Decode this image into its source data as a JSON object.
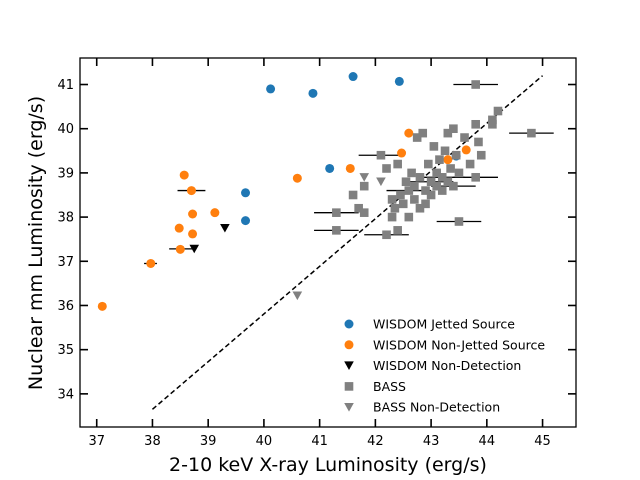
{
  "chart_data": {
    "type": "scatter",
    "xlabel": "2-10 keV X-ray Luminosity (erg/s)",
    "ylabel": "Nuclear mm Luminosity (erg/s)",
    "xlim": [
      36.7,
      45.6
    ],
    "ylim": [
      33.25,
      41.6
    ],
    "xticks": [
      37,
      38,
      39,
      40,
      41,
      42,
      43,
      44,
      45
    ],
    "yticks": [
      34,
      35,
      36,
      37,
      38,
      39,
      40,
      41
    ],
    "grid": false,
    "legend_position": "lower-right",
    "reference_line": {
      "style": "dashed",
      "color": "#000000",
      "x": [
        38.0,
        45.0
      ],
      "y": [
        33.65,
        41.2
      ]
    },
    "series": [
      {
        "name": "WISDOM Jetted Source",
        "marker": "circle",
        "color": "#1f77b4",
        "points": [
          {
            "x": 39.67,
            "y": 38.55
          },
          {
            "x": 39.67,
            "y": 37.92
          },
          {
            "x": 40.12,
            "y": 40.9
          },
          {
            "x": 40.88,
            "y": 40.8
          },
          {
            "x": 41.18,
            "y": 39.1
          },
          {
            "x": 41.6,
            "y": 41.18
          },
          {
            "x": 42.43,
            "y": 41.07
          },
          {
            "x": 43.45,
            "y": 39.38
          }
        ]
      },
      {
        "name": "WISDOM Non-Jetted Source",
        "marker": "circle",
        "color": "#ff7f0e",
        "points": [
          {
            "x": 37.1,
            "y": 35.98
          },
          {
            "x": 37.97,
            "y": 36.95
          },
          {
            "x": 38.48,
            "y": 37.75
          },
          {
            "x": 38.5,
            "y": 37.27
          },
          {
            "x": 38.57,
            "y": 38.95
          },
          {
            "x": 38.7,
            "y": 38.6
          },
          {
            "x": 38.72,
            "y": 38.07
          },
          {
            "x": 38.72,
            "y": 37.62
          },
          {
            "x": 39.12,
            "y": 38.1
          },
          {
            "x": 40.6,
            "y": 38.88
          },
          {
            "x": 41.55,
            "y": 39.1
          },
          {
            "x": 42.47,
            "y": 39.45
          },
          {
            "x": 42.6,
            "y": 39.9
          },
          {
            "x": 43.3,
            "y": 39.3
          },
          {
            "x": 43.63,
            "y": 39.52
          }
        ],
        "xerr": [
          {
            "x": 38.7,
            "y": 38.6,
            "lo": 38.45,
            "hi": 38.95
          },
          {
            "x": 37.97,
            "y": 36.95,
            "lo": 37.85,
            "hi": 38.08
          }
        ]
      },
      {
        "name": "WISDOM Non-Detection",
        "marker": "triangle-down",
        "color": "#000000",
        "points": [
          {
            "x": 38.75,
            "y": 37.28
          },
          {
            "x": 39.3,
            "y": 37.75
          }
        ],
        "xerr": [
          {
            "x": 38.75,
            "y": 37.28,
            "lo": 38.3,
            "hi": 38.75
          }
        ]
      },
      {
        "name": "BASS",
        "marker": "square",
        "color": "#808080",
        "points": [
          {
            "x": 41.3,
            "y": 37.7
          },
          {
            "x": 41.3,
            "y": 38.1
          },
          {
            "x": 41.6,
            "y": 38.5
          },
          {
            "x": 41.7,
            "y": 38.2
          },
          {
            "x": 41.8,
            "y": 38.1
          },
          {
            "x": 41.8,
            "y": 38.7
          },
          {
            "x": 42.1,
            "y": 39.4
          },
          {
            "x": 42.2,
            "y": 39.1
          },
          {
            "x": 42.2,
            "y": 37.6
          },
          {
            "x": 42.3,
            "y": 38.4
          },
          {
            "x": 42.3,
            "y": 38.0
          },
          {
            "x": 42.35,
            "y": 38.2
          },
          {
            "x": 42.4,
            "y": 39.2
          },
          {
            "x": 42.4,
            "y": 37.7
          },
          {
            "x": 42.45,
            "y": 38.5
          },
          {
            "x": 42.5,
            "y": 38.3
          },
          {
            "x": 42.55,
            "y": 38.8
          },
          {
            "x": 42.6,
            "y": 38.6
          },
          {
            "x": 42.6,
            "y": 38.0
          },
          {
            "x": 42.65,
            "y": 39.0
          },
          {
            "x": 42.7,
            "y": 38.7
          },
          {
            "x": 42.7,
            "y": 38.4
          },
          {
            "x": 42.75,
            "y": 39.8
          },
          {
            "x": 42.8,
            "y": 38.9
          },
          {
            "x": 42.8,
            "y": 38.2
          },
          {
            "x": 42.85,
            "y": 39.9
          },
          {
            "x": 42.9,
            "y": 38.6
          },
          {
            "x": 42.9,
            "y": 38.3
          },
          {
            "x": 42.95,
            "y": 39.2
          },
          {
            "x": 43.0,
            "y": 38.8
          },
          {
            "x": 43.0,
            "y": 38.5
          },
          {
            "x": 43.05,
            "y": 39.6
          },
          {
            "x": 43.1,
            "y": 39.0
          },
          {
            "x": 43.1,
            "y": 38.7
          },
          {
            "x": 43.15,
            "y": 39.3
          },
          {
            "x": 43.2,
            "y": 38.9
          },
          {
            "x": 43.2,
            "y": 38.6
          },
          {
            "x": 43.25,
            "y": 39.5
          },
          {
            "x": 43.3,
            "y": 39.9
          },
          {
            "x": 43.3,
            "y": 38.8
          },
          {
            "x": 43.35,
            "y": 39.1
          },
          {
            "x": 43.4,
            "y": 40.0
          },
          {
            "x": 43.4,
            "y": 38.7
          },
          {
            "x": 43.45,
            "y": 39.4
          },
          {
            "x": 43.5,
            "y": 37.9
          },
          {
            "x": 43.5,
            "y": 39.0
          },
          {
            "x": 43.6,
            "y": 39.8
          },
          {
            "x": 43.7,
            "y": 39.2
          },
          {
            "x": 43.8,
            "y": 38.9
          },
          {
            "x": 43.8,
            "y": 40.1
          },
          {
            "x": 43.8,
            "y": 41.0
          },
          {
            "x": 43.85,
            "y": 39.7
          },
          {
            "x": 43.9,
            "y": 39.4
          },
          {
            "x": 44.1,
            "y": 40.1
          },
          {
            "x": 44.1,
            "y": 40.2
          },
          {
            "x": 44.2,
            "y": 40.4
          },
          {
            "x": 44.8,
            "y": 39.9
          }
        ],
        "xerr": [
          {
            "x": 41.3,
            "y": 37.7,
            "lo": 40.9,
            "hi": 41.7
          },
          {
            "x": 41.3,
            "y": 38.1,
            "lo": 40.9,
            "hi": 41.7
          },
          {
            "x": 42.1,
            "y": 39.4,
            "lo": 41.7,
            "hi": 42.5
          },
          {
            "x": 42.2,
            "y": 37.6,
            "lo": 41.8,
            "hi": 42.6
          },
          {
            "x": 42.6,
            "y": 38.6,
            "lo": 42.2,
            "hi": 43.0
          },
          {
            "x": 43.0,
            "y": 38.8,
            "lo": 42.6,
            "hi": 43.4
          },
          {
            "x": 43.2,
            "y": 38.9,
            "lo": 42.8,
            "hi": 43.6
          },
          {
            "x": 43.4,
            "y": 38.7,
            "lo": 43.0,
            "hi": 43.8
          },
          {
            "x": 43.5,
            "y": 37.9,
            "lo": 43.1,
            "hi": 43.9
          },
          {
            "x": 43.8,
            "y": 38.9,
            "lo": 43.4,
            "hi": 44.2
          },
          {
            "x": 43.8,
            "y": 41.0,
            "lo": 43.4,
            "hi": 44.2
          },
          {
            "x": 44.8,
            "y": 39.9,
            "lo": 44.4,
            "hi": 45.2
          }
        ]
      },
      {
        "name": "BASS Non-Detection",
        "marker": "triangle-down",
        "color": "#808080",
        "points": [
          {
            "x": 40.6,
            "y": 36.22
          },
          {
            "x": 41.8,
            "y": 38.9
          },
          {
            "x": 42.1,
            "y": 38.8
          }
        ]
      }
    ]
  }
}
